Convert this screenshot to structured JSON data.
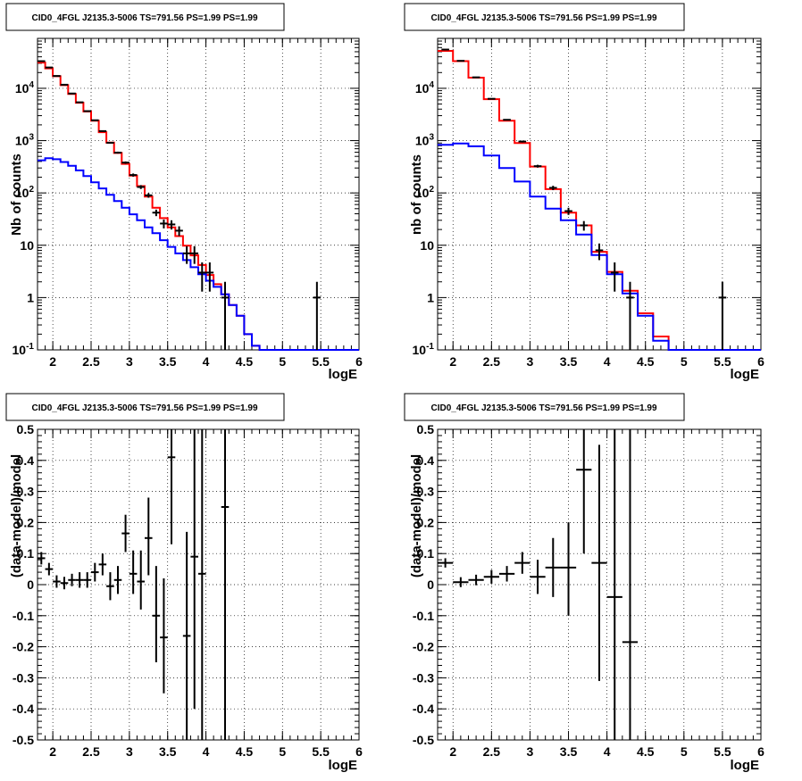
{
  "charts": [
    {
      "title": "CID0_4FGL J2135.3-5006 TS=791.56 PS=1.99 PS=1.99",
      "xlabel": "logE",
      "ylabel": "Nb of counts"
    },
    {
      "title": "CID0_4FGL J2135.3-5006 TS=791.56 PS=1.99 PS=1.99",
      "xlabel": "logE",
      "ylabel": "nb of counts"
    },
    {
      "title": "CID0_4FGL J2135.3-5006 TS=791.56 PS=1.99 PS=1.99",
      "xlabel": "logE",
      "ylabel": "(data-model)/model"
    },
    {
      "title": "CID0_4FGL J2135.3-5006 TS=791.56 PS=1.99 PS=1.99",
      "xlabel": "logE",
      "ylabel": "(data-model)/model"
    }
  ],
  "chart_data": [
    {
      "type": "line",
      "title": "CID0_4FGL J2135.3-5006 TS=791.56 PS=1.99 PS=1.99",
      "xlabel": "logE",
      "ylabel": "Nb of counts",
      "yscale": "log",
      "xlim": [
        1.8,
        6
      ],
      "ylim": [
        0.1,
        90000
      ],
      "grid": true,
      "xticks": [
        "2",
        "2.5",
        "3",
        "3.5",
        "4",
        "4.5",
        "5",
        "5.5",
        "6"
      ],
      "yticks": [
        "10^{-1}",
        "1",
        "10",
        "10^{2}",
        "10^{3}",
        "10^{4}"
      ],
      "colors": {
        "model_total": "#ff0000",
        "model_background": "#0000ff",
        "data": "#000000"
      },
      "series": [
        {
          "kind": "step",
          "color": "#ff0000",
          "edges": [
            1.8,
            1.9,
            2.0,
            2.1,
            2.2,
            2.3,
            2.4,
            2.5,
            2.6,
            2.7,
            2.8,
            2.9,
            3.0,
            3.1,
            3.2,
            3.3,
            3.4,
            3.5,
            3.6,
            3.7,
            3.8,
            3.9,
            4.0,
            4.1,
            4.2,
            4.3,
            4.4,
            4.5,
            4.6,
            4.7,
            4.8,
            4.9,
            5.0,
            5.1,
            5.2,
            5.3,
            5.4,
            5.5,
            5.6,
            5.7,
            5.8,
            5.9,
            6.0
          ],
          "values": [
            31000,
            24000,
            17000,
            11500,
            7800,
            5300,
            3600,
            2400,
            1450,
            920,
            580,
            360,
            215,
            135,
            85,
            52,
            33,
            22,
            15,
            9.8,
            6.4,
            4.2,
            2.7,
            1.8,
            1.15,
            0.72,
            0.45,
            0.2,
            0.12,
            0.1,
            0.1,
            0.1,
            0.1,
            0.1,
            0.1,
            0.1,
            0.1,
            0.1,
            0.1,
            0.1,
            0.1,
            0.1
          ]
        },
        {
          "kind": "step",
          "color": "#0000ff",
          "edges": [
            1.8,
            1.9,
            2.0,
            2.1,
            2.2,
            2.3,
            2.4,
            2.5,
            2.6,
            2.7,
            2.8,
            2.9,
            3.0,
            3.1,
            3.2,
            3.3,
            3.4,
            3.5,
            3.6,
            3.7,
            3.8,
            3.9,
            4.0,
            4.1,
            4.2,
            4.3,
            4.4,
            4.5,
            4.6,
            4.7,
            4.8,
            4.9,
            5.0,
            5.1,
            5.2,
            5.3,
            5.4,
            5.5,
            5.6,
            5.7,
            5.8,
            5.9,
            6.0
          ],
          "values": [
            420,
            460,
            440,
            390,
            330,
            270,
            210,
            160,
            122,
            92,
            70,
            52,
            39,
            30,
            22,
            17,
            12.5,
            9.3,
            7,
            5.2,
            3.8,
            2.8,
            2.1,
            1.6,
            1.15,
            0.72,
            0.45,
            0.2,
            0.12,
            0.1,
            0.1,
            0.1,
            0.1,
            0.1,
            0.1,
            0.1,
            0.1,
            0.1,
            0.1,
            0.1,
            0.1,
            0.1
          ]
        },
        {
          "kind": "errorbar",
          "color": "#000000",
          "points": [
            {
              "x": 1.85,
              "y": 33000,
              "lo": 32800,
              "hi": 33200
            },
            {
              "x": 1.95,
              "y": 25000,
              "lo": 24800,
              "hi": 25200
            },
            {
              "x": 2.05,
              "y": 17200,
              "lo": 17000,
              "hi": 17400
            },
            {
              "x": 2.15,
              "y": 11700,
              "lo": 11500,
              "hi": 11900
            },
            {
              "x": 2.25,
              "y": 7950,
              "lo": 7850,
              "hi": 8050
            },
            {
              "x": 2.35,
              "y": 5400,
              "lo": 5320,
              "hi": 5480
            },
            {
              "x": 2.45,
              "y": 3660,
              "lo": 3600,
              "hi": 3720
            },
            {
              "x": 2.55,
              "y": 2450,
              "lo": 2400,
              "hi": 2500
            },
            {
              "x": 2.65,
              "y": 1520,
              "lo": 1480,
              "hi": 1560
            },
            {
              "x": 2.75,
              "y": 910,
              "lo": 880,
              "hi": 940
            },
            {
              "x": 2.85,
              "y": 590,
              "lo": 565,
              "hi": 615
            },
            {
              "x": 2.95,
              "y": 380,
              "lo": 360,
              "hi": 400
            },
            {
              "x": 3.05,
              "y": 220,
              "lo": 205,
              "hi": 235
            },
            {
              "x": 3.15,
              "y": 130,
              "lo": 119,
              "hi": 141
            },
            {
              "x": 3.25,
              "y": 90,
              "lo": 81,
              "hi": 99
            },
            {
              "x": 3.35,
              "y": 42,
              "lo": 36,
              "hi": 48
            },
            {
              "x": 3.45,
              "y": 26,
              "lo": 21,
              "hi": 31
            },
            {
              "x": 3.55,
              "y": 25,
              "lo": 20,
              "hi": 30
            },
            {
              "x": 3.65,
              "y": 19,
              "lo": 15,
              "hi": 23
            },
            {
              "x": 3.75,
              "y": 7,
              "lo": 4.4,
              "hi": 9.6
            },
            {
              "x": 3.85,
              "y": 7,
              "lo": 4.4,
              "hi": 9.6
            },
            {
              "x": 3.95,
              "y": 3,
              "lo": 1.3,
              "hi": 4.7
            },
            {
              "x": 4.05,
              "y": 3,
              "lo": 1.3,
              "hi": 4.7
            },
            {
              "x": 4.25,
              "y": 1,
              "lo": 0.1,
              "hi": 2
            },
            {
              "x": 5.45,
              "y": 1,
              "lo": 0.1,
              "hi": 2
            }
          ]
        }
      ]
    },
    {
      "type": "line",
      "title": "CID0_4FGL J2135.3-5006 TS=791.56 PS=1.99 PS=1.99",
      "xlabel": "logE",
      "ylabel": "nb of counts",
      "yscale": "log",
      "xlim": [
        1.8,
        6
      ],
      "ylim": [
        0.1,
        90000
      ],
      "grid": true,
      "xticks": [
        "2",
        "2.5",
        "3",
        "3.5",
        "4",
        "4.5",
        "5",
        "5.5",
        "6"
      ],
      "yticks": [
        "10^{-1}",
        "1",
        "10",
        "10^{2}",
        "10^{3}",
        "10^{4}"
      ],
      "colors": {
        "model_total": "#ff0000",
        "model_background": "#0000ff",
        "data": "#000000"
      },
      "series": [
        {
          "kind": "step",
          "color": "#ff0000",
          "edges": [
            1.8,
            2.0,
            2.2,
            2.4,
            2.6,
            2.8,
            3.0,
            3.2,
            3.4,
            3.6,
            3.8,
            4.0,
            4.2,
            4.4,
            4.6,
            4.8,
            5.0,
            5.2,
            5.4,
            5.6,
            5.8,
            6.0
          ],
          "values": [
            52000,
            33000,
            16000,
            6200,
            2400,
            900,
            320,
            118,
            42,
            24,
            7.5,
            3.1,
            1.35,
            0.5,
            0.18,
            0.1,
            0.1,
            0.1,
            0.1,
            0.1,
            0.1
          ]
        },
        {
          "kind": "step",
          "color": "#0000ff",
          "edges": [
            1.8,
            2.0,
            2.2,
            2.4,
            2.6,
            2.8,
            3.0,
            3.2,
            3.4,
            3.6,
            3.8,
            4.0,
            4.2,
            4.4,
            4.6,
            4.8,
            5.0,
            5.2,
            5.4,
            5.6,
            5.8,
            6.0
          ],
          "values": [
            830,
            880,
            780,
            520,
            300,
            165,
            85,
            50,
            30,
            16,
            6.5,
            2.8,
            1.2,
            0.45,
            0.15,
            0.1,
            0.1,
            0.1,
            0.1,
            0.1,
            0.1
          ]
        },
        {
          "kind": "errorbar",
          "color": "#000000",
          "points": [
            {
              "x": 1.9,
              "y": 55000,
              "lo": 54700,
              "hi": 55300
            },
            {
              "x": 2.1,
              "y": 33500,
              "lo": 33300,
              "hi": 33700
            },
            {
              "x": 2.3,
              "y": 16200,
              "lo": 16000,
              "hi": 16400
            },
            {
              "x": 2.5,
              "y": 6300,
              "lo": 6200,
              "hi": 6400
            },
            {
              "x": 2.7,
              "y": 2500,
              "lo": 2430,
              "hi": 2570
            },
            {
              "x": 2.9,
              "y": 960,
              "lo": 920,
              "hi": 1000
            },
            {
              "x": 3.1,
              "y": 325,
              "lo": 305,
              "hi": 345
            },
            {
              "x": 3.3,
              "y": 125,
              "lo": 113,
              "hi": 137
            },
            {
              "x": 3.5,
              "y": 45,
              "lo": 38,
              "hi": 52
            },
            {
              "x": 3.7,
              "y": 24,
              "lo": 19,
              "hi": 29
            },
            {
              "x": 3.9,
              "y": 8,
              "lo": 5.2,
              "hi": 10.8
            },
            {
              "x": 4.1,
              "y": 3,
              "lo": 1.3,
              "hi": 4.7
            },
            {
              "x": 4.3,
              "y": 1,
              "lo": 0.1,
              "hi": 2
            },
            {
              "x": 5.5,
              "y": 1,
              "lo": 0.1,
              "hi": 2
            }
          ]
        }
      ]
    },
    {
      "type": "scatter",
      "title": "CID0_4FGL J2135.3-5006 TS=791.56 PS=1.99 PS=1.99",
      "xlabel": "logE",
      "ylabel": "(data-model)/model",
      "xlim": [
        1.8,
        6
      ],
      "ylim": [
        -0.5,
        0.5
      ],
      "grid": true,
      "xticks": [
        "2",
        "2.5",
        "3",
        "3.5",
        "4",
        "4.5",
        "5",
        "5.5",
        "6"
      ],
      "yticks": [
        "-0.5",
        "-0.4",
        "-0.3",
        "-0.2",
        "-0.1",
        "0",
        "0.1",
        "0.2",
        "0.3",
        "0.4",
        "0.5"
      ],
      "series": [
        {
          "kind": "errorbar",
          "color": "#000000",
          "halfwidth": 0.05,
          "points": [
            {
              "x": 1.85,
              "y": 0.085,
              "lo": 0.065,
              "hi": 0.105
            },
            {
              "x": 1.95,
              "y": 0.05,
              "lo": 0.03,
              "hi": 0.07
            },
            {
              "x": 2.05,
              "y": 0.01,
              "lo": -0.01,
              "hi": 0.03
            },
            {
              "x": 2.15,
              "y": 0.005,
              "lo": -0.015,
              "hi": 0.025
            },
            {
              "x": 2.25,
              "y": 0.015,
              "lo": -0.005,
              "hi": 0.035
            },
            {
              "x": 2.35,
              "y": 0.015,
              "lo": -0.01,
              "hi": 0.04
            },
            {
              "x": 2.45,
              "y": 0.015,
              "lo": -0.01,
              "hi": 0.04
            },
            {
              "x": 2.55,
              "y": 0.04,
              "lo": 0.01,
              "hi": 0.07
            },
            {
              "x": 2.65,
              "y": 0.065,
              "lo": 0.03,
              "hi": 0.1
            },
            {
              "x": 2.75,
              "y": -0.005,
              "lo": -0.05,
              "hi": 0.04
            },
            {
              "x": 2.85,
              "y": 0.015,
              "lo": -0.03,
              "hi": 0.06
            },
            {
              "x": 2.95,
              "y": 0.165,
              "lo": 0.105,
              "hi": 0.225
            },
            {
              "x": 3.05,
              "y": 0.035,
              "lo": -0.03,
              "hi": 0.11
            },
            {
              "x": 3.15,
              "y": 0.01,
              "lo": -0.08,
              "hi": 0.11
            },
            {
              "x": 3.25,
              "y": 0.15,
              "lo": 0.03,
              "hi": 0.28
            },
            {
              "x": 3.35,
              "y": -0.1,
              "lo": -0.25,
              "hi": 0.06
            },
            {
              "x": 3.45,
              "y": -0.17,
              "lo": -0.35,
              "hi": 0.02
            },
            {
              "x": 3.55,
              "y": 0.41,
              "lo": 0.13,
              "hi": 0.5
            },
            {
              "x": 3.75,
              "y": -0.165,
              "lo": -0.5,
              "hi": 0.17
            },
            {
              "x": 3.85,
              "y": 0.09,
              "lo": -0.4,
              "hi": 0.5
            },
            {
              "x": 3.95,
              "y": 0.035,
              "lo": -0.5,
              "hi": 0.5
            },
            {
              "x": 4.25,
              "y": 0.25,
              "lo": -0.5,
              "hi": 0.5
            }
          ]
        }
      ]
    },
    {
      "type": "scatter",
      "title": "CID0_4FGL J2135.3-5006 TS=791.56 PS=1.99 PS=1.99",
      "xlabel": "logE",
      "ylabel": "(data-model)/model",
      "xlim": [
        1.8,
        6
      ],
      "ylim": [
        -0.5,
        0.5
      ],
      "grid": true,
      "xticks": [
        "2",
        "2.5",
        "3",
        "3.5",
        "4",
        "4.5",
        "5",
        "5.5",
        "6"
      ],
      "yticks": [
        "-0.5",
        "-0.4",
        "-0.3",
        "-0.2",
        "-0.1",
        "0",
        "0.1",
        "0.2",
        "0.3",
        "0.4",
        "0.5"
      ],
      "series": [
        {
          "kind": "errorbar",
          "color": "#000000",
          "halfwidth": 0.1,
          "points": [
            {
              "x": 1.9,
              "y": 0.07,
              "lo": 0.055,
              "hi": 0.085
            },
            {
              "x": 2.1,
              "y": 0.008,
              "lo": -0.008,
              "hi": 0.024
            },
            {
              "x": 2.3,
              "y": 0.015,
              "lo": -0.002,
              "hi": 0.032
            },
            {
              "x": 2.5,
              "y": 0.025,
              "lo": 0.003,
              "hi": 0.047
            },
            {
              "x": 2.7,
              "y": 0.035,
              "lo": 0.01,
              "hi": 0.06
            },
            {
              "x": 2.9,
              "y": 0.07,
              "lo": 0.035,
              "hi": 0.105
            },
            {
              "x": 3.1,
              "y": 0.025,
              "lo": -0.03,
              "hi": 0.08
            },
            {
              "x": 3.3,
              "y": 0.055,
              "lo": -0.04,
              "hi": 0.15
            },
            {
              "x": 3.5,
              "y": 0.055,
              "lo": -0.1,
              "hi": 0.2
            },
            {
              "x": 3.7,
              "y": 0.37,
              "lo": 0.1,
              "hi": 0.5
            },
            {
              "x": 3.9,
              "y": 0.07,
              "lo": -0.31,
              "hi": 0.45
            },
            {
              "x": 4.1,
              "y": -0.04,
              "lo": -0.5,
              "hi": 0.5
            },
            {
              "x": 4.3,
              "y": -0.185,
              "lo": -0.5,
              "hi": 0.5
            }
          ]
        }
      ]
    }
  ]
}
